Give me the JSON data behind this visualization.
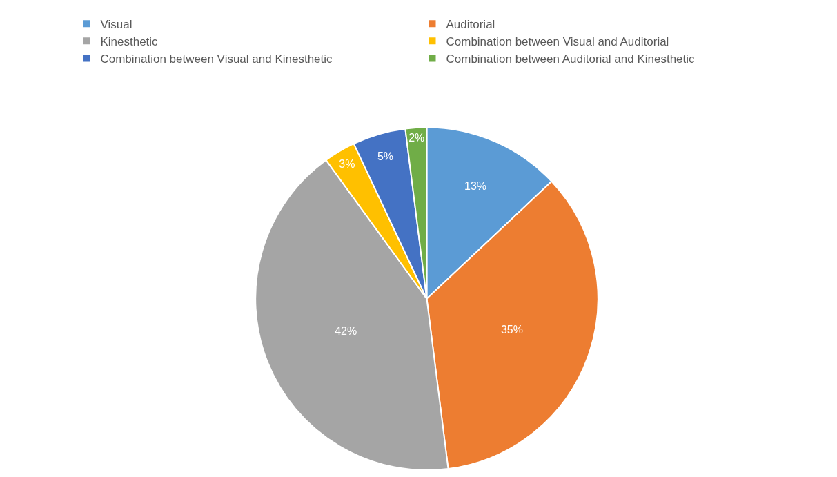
{
  "chart_data": {
    "type": "pie",
    "categories": [
      "Visual",
      "Auditorial",
      "Kinesthetic",
      "Combination between Visual and Auditorial",
      "Combination between Visual and Kinesthetic",
      "Combination between Auditorial and Kinesthetic"
    ],
    "values": [
      13,
      35,
      42,
      3,
      5,
      2
    ],
    "value_labels": [
      "13%",
      "35%",
      "42%",
      "3%",
      "5%",
      "2%"
    ],
    "colors": [
      "#5b9bd5",
      "#ed7d31",
      "#a5a5a5",
      "#ffc000",
      "#4472c4",
      "#70ad47"
    ],
    "legend": "top"
  }
}
